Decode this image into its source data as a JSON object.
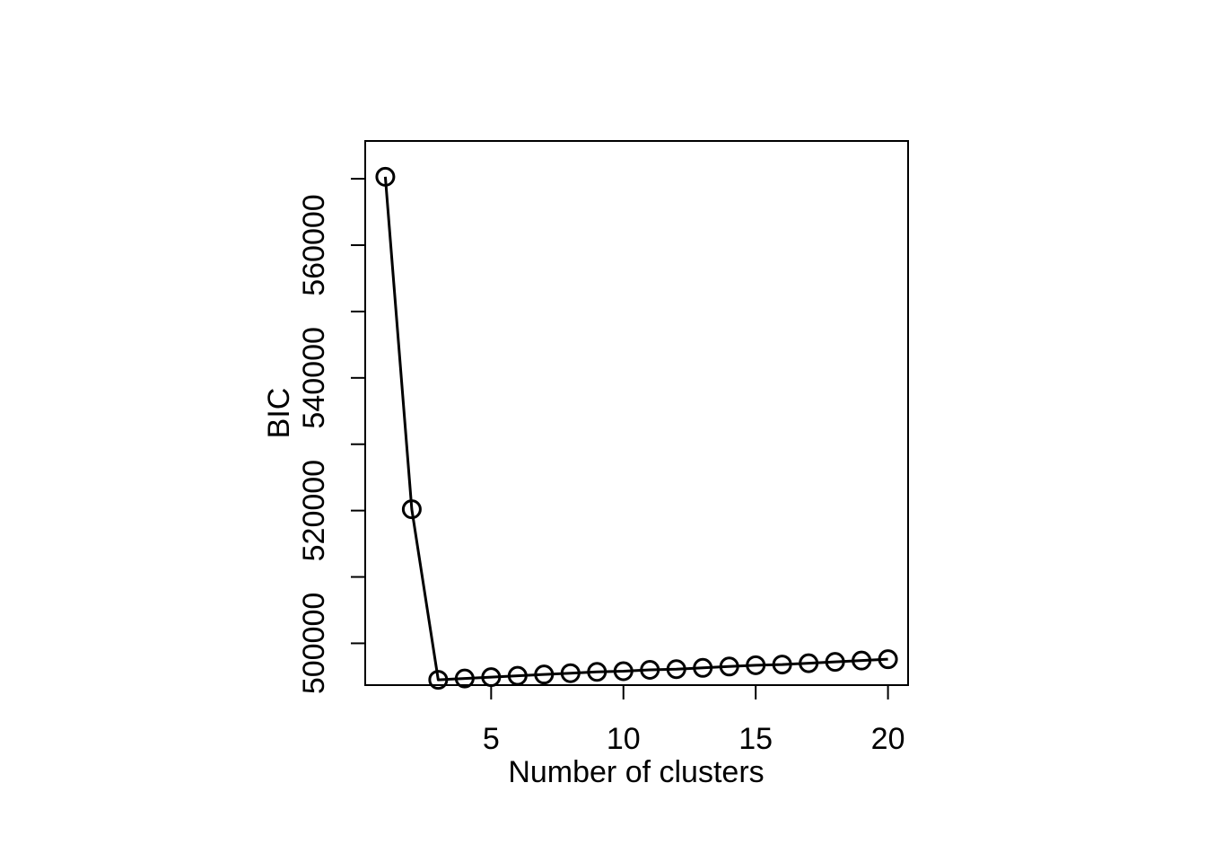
{
  "chart_data": {
    "type": "line",
    "xlabel": "Number of clusters",
    "ylabel": "BIC",
    "xlim": [
      0.24,
      20.76
    ],
    "ylim": [
      493700,
      575700
    ],
    "x_ticks": [
      5,
      10,
      15,
      20
    ],
    "y_ticks": [
      500000,
      520000,
      540000,
      560000
    ],
    "y_minor_ticks": [
      510000,
      530000,
      550000,
      570000
    ],
    "x": [
      1,
      2,
      3,
      4,
      5,
      6,
      7,
      8,
      9,
      10,
      11,
      12,
      13,
      14,
      15,
      16,
      17,
      18,
      19,
      20
    ],
    "series": [
      {
        "values": [
          570300,
          520200,
          494500,
          494700,
          494900,
          495100,
          495300,
          495500,
          495700,
          495800,
          496000,
          496100,
          496300,
          496500,
          496700,
          496800,
          497000,
          497200,
          497400,
          497600
        ],
        "marker": "open-circle",
        "color": "#000000"
      }
    ]
  }
}
